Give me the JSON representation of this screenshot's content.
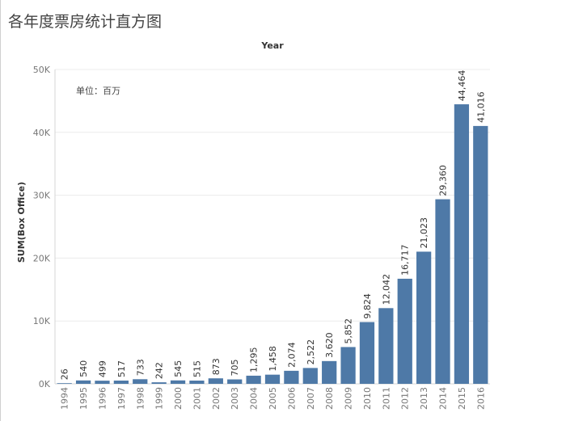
{
  "page": {
    "title": "各年度票房统计直方图"
  },
  "chart_data": {
    "type": "bar",
    "title": "各年度票房统计直方图",
    "column_header": "Year",
    "xlabel": "",
    "ylabel": "SUM(Box Office)",
    "annotation": "单位：百万",
    "ylim": [
      0,
      50000
    ],
    "yticks": [
      {
        "value": 0,
        "label": "0K"
      },
      {
        "value": 10000,
        "label": "10K"
      },
      {
        "value": 20000,
        "label": "20K"
      },
      {
        "value": 30000,
        "label": "30K"
      },
      {
        "value": 40000,
        "label": "40K"
      },
      {
        "value": 50000,
        "label": "50K"
      }
    ],
    "grid": true,
    "bar_color": "#4e79a7",
    "categories": [
      "1994",
      "1995",
      "1996",
      "1997",
      "1998",
      "1999",
      "2000",
      "2001",
      "2002",
      "2003",
      "2004",
      "2005",
      "2006",
      "2007",
      "2008",
      "2009",
      "2010",
      "2011",
      "2012",
      "2013",
      "2014",
      "2015",
      "2016"
    ],
    "values": [
      26,
      540,
      499,
      517,
      733,
      242,
      545,
      515,
      873,
      705,
      1295,
      1458,
      2074,
      2522,
      3620,
      5852,
      9824,
      12042,
      16717,
      21023,
      29360,
      44464,
      41016
    ],
    "value_labels": [
      "26",
      "540",
      "499",
      "517",
      "733",
      "242",
      "545",
      "515",
      "873",
      "705",
      "1,295",
      "1,458",
      "2,074",
      "2,522",
      "3,620",
      "5,852",
      "9,824",
      "12,042",
      "16,717",
      "21,023",
      "29,360",
      "44,464",
      "41,016"
    ]
  }
}
